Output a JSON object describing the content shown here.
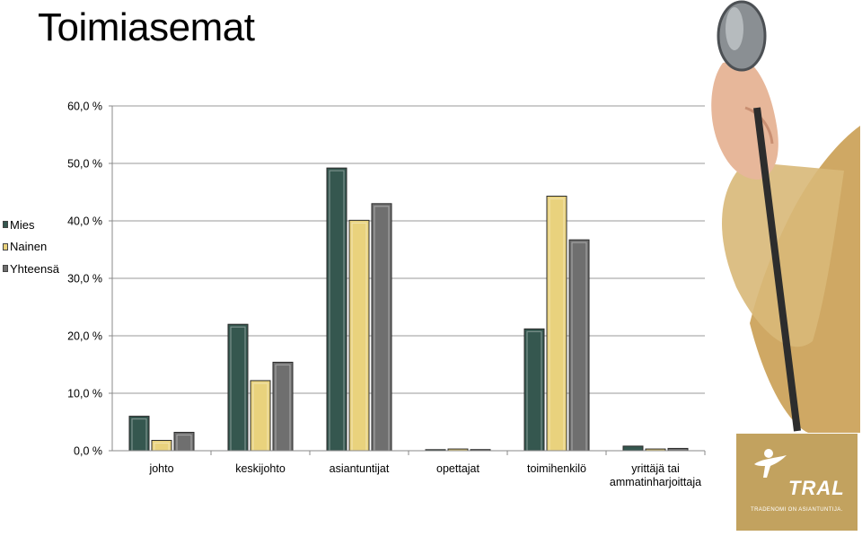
{
  "title": "Toimiasemat",
  "colors": {
    "mies": "#35574f",
    "nainen": "#e9d27d",
    "yhteensa": "#6f6f6f",
    "logo_bg": "#c2a25f",
    "dress": "#cfa864"
  },
  "chart_data": {
    "type": "bar",
    "categories": [
      "johto",
      "keskijohto",
      "asiantuntijat",
      "opettajat",
      "toimihenkilö",
      "yrittäjä tai ammatinharjoittaja"
    ],
    "category_lines": [
      [
        "johto"
      ],
      [
        "keskijohto"
      ],
      [
        "asiantuntijat"
      ],
      [
        "opettajat"
      ],
      [
        "toimihenkilö"
      ],
      [
        "yrittäjä tai",
        "ammatinharjoittaja"
      ]
    ],
    "series": [
      {
        "name": "Mies",
        "values": [
          6.0,
          22.0,
          49.2,
          0.1,
          21.2,
          0.8
        ]
      },
      {
        "name": "Nainen",
        "values": [
          1.8,
          12.2,
          40.1,
          0.3,
          44.3,
          0.3
        ]
      },
      {
        "name": "Yhteensä",
        "values": [
          3.2,
          15.4,
          43.0,
          0.2,
          36.7,
          0.4
        ]
      }
    ],
    "yticks": [
      "0,0 %",
      "10,0 %",
      "20,0 %",
      "30,0 %",
      "40,0 %",
      "50,0 %",
      "60,0 %"
    ],
    "ylim": [
      0,
      60
    ],
    "grid": true,
    "legend_position": "left"
  },
  "logo": {
    "name": "TRAL",
    "tagline": "TRADENOMI ON ASIANTUNTIJA."
  }
}
